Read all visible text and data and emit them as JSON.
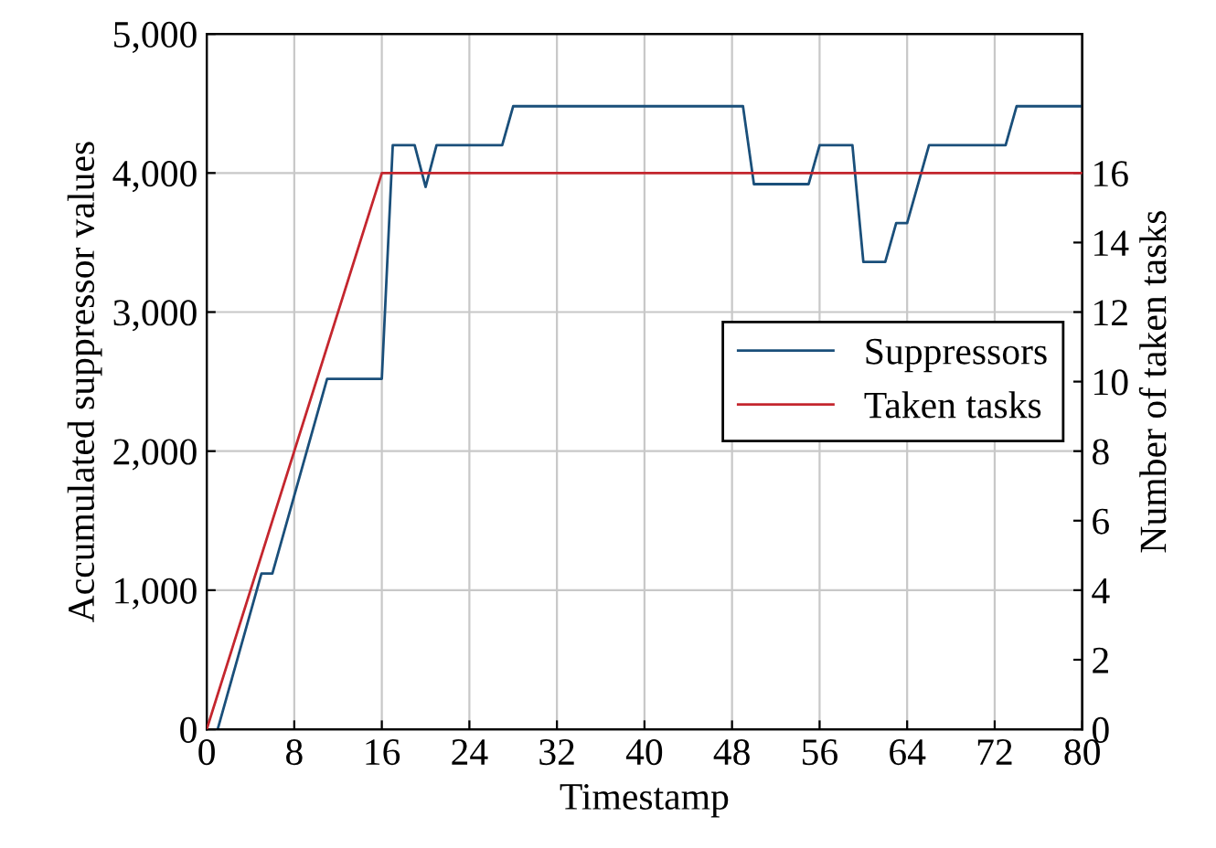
{
  "chart_data": {
    "type": "line",
    "xlabel": "Timestamp",
    "ylabel": "Accumulated suppressor values",
    "y2label": "Number of taken tasks",
    "xlim": [
      0,
      80
    ],
    "xticks": [
      0,
      8,
      16,
      24,
      32,
      40,
      48,
      56,
      64,
      72,
      80
    ],
    "ylim": [
      0,
      5000
    ],
    "yticks": [
      0,
      {
        "value": 1000,
        "label": "1,000"
      },
      {
        "value": 2000,
        "label": "2,000"
      },
      {
        "value": 3000,
        "label": "3,000"
      },
      {
        "value": 4000,
        "label": "4,000"
      },
      {
        "value": 5000,
        "label": "5,000"
      }
    ],
    "y2lim": [
      0,
      20
    ],
    "y2ticks": [
      0,
      2,
      4,
      6,
      8,
      10,
      12,
      14,
      16
    ],
    "grid": true,
    "legend": "right",
    "marker": "none",
    "line_style": "solid",
    "series": [
      {
        "name": "Suppressors",
        "color": "#1a4f7a",
        "x": [
          1,
          5,
          6,
          11,
          16,
          17,
          19,
          20,
          21,
          27,
          28,
          49,
          50,
          55,
          56,
          59,
          60,
          62,
          63,
          64,
          66,
          73,
          74,
          80
        ],
        "values": [
          0,
          1120,
          1120,
          2520,
          2520,
          4200,
          4200,
          3900,
          4200,
          4200,
          4480,
          4480,
          3920,
          3920,
          4200,
          4200,
          3360,
          3360,
          3640,
          3640,
          4200,
          4200,
          4480,
          4480
        ]
      },
      {
        "name": "Taken tasks",
        "color": "#c4262e",
        "axis": "y2",
        "x": [
          0,
          16,
          80
        ],
        "values": [
          0,
          16,
          16
        ]
      }
    ]
  }
}
